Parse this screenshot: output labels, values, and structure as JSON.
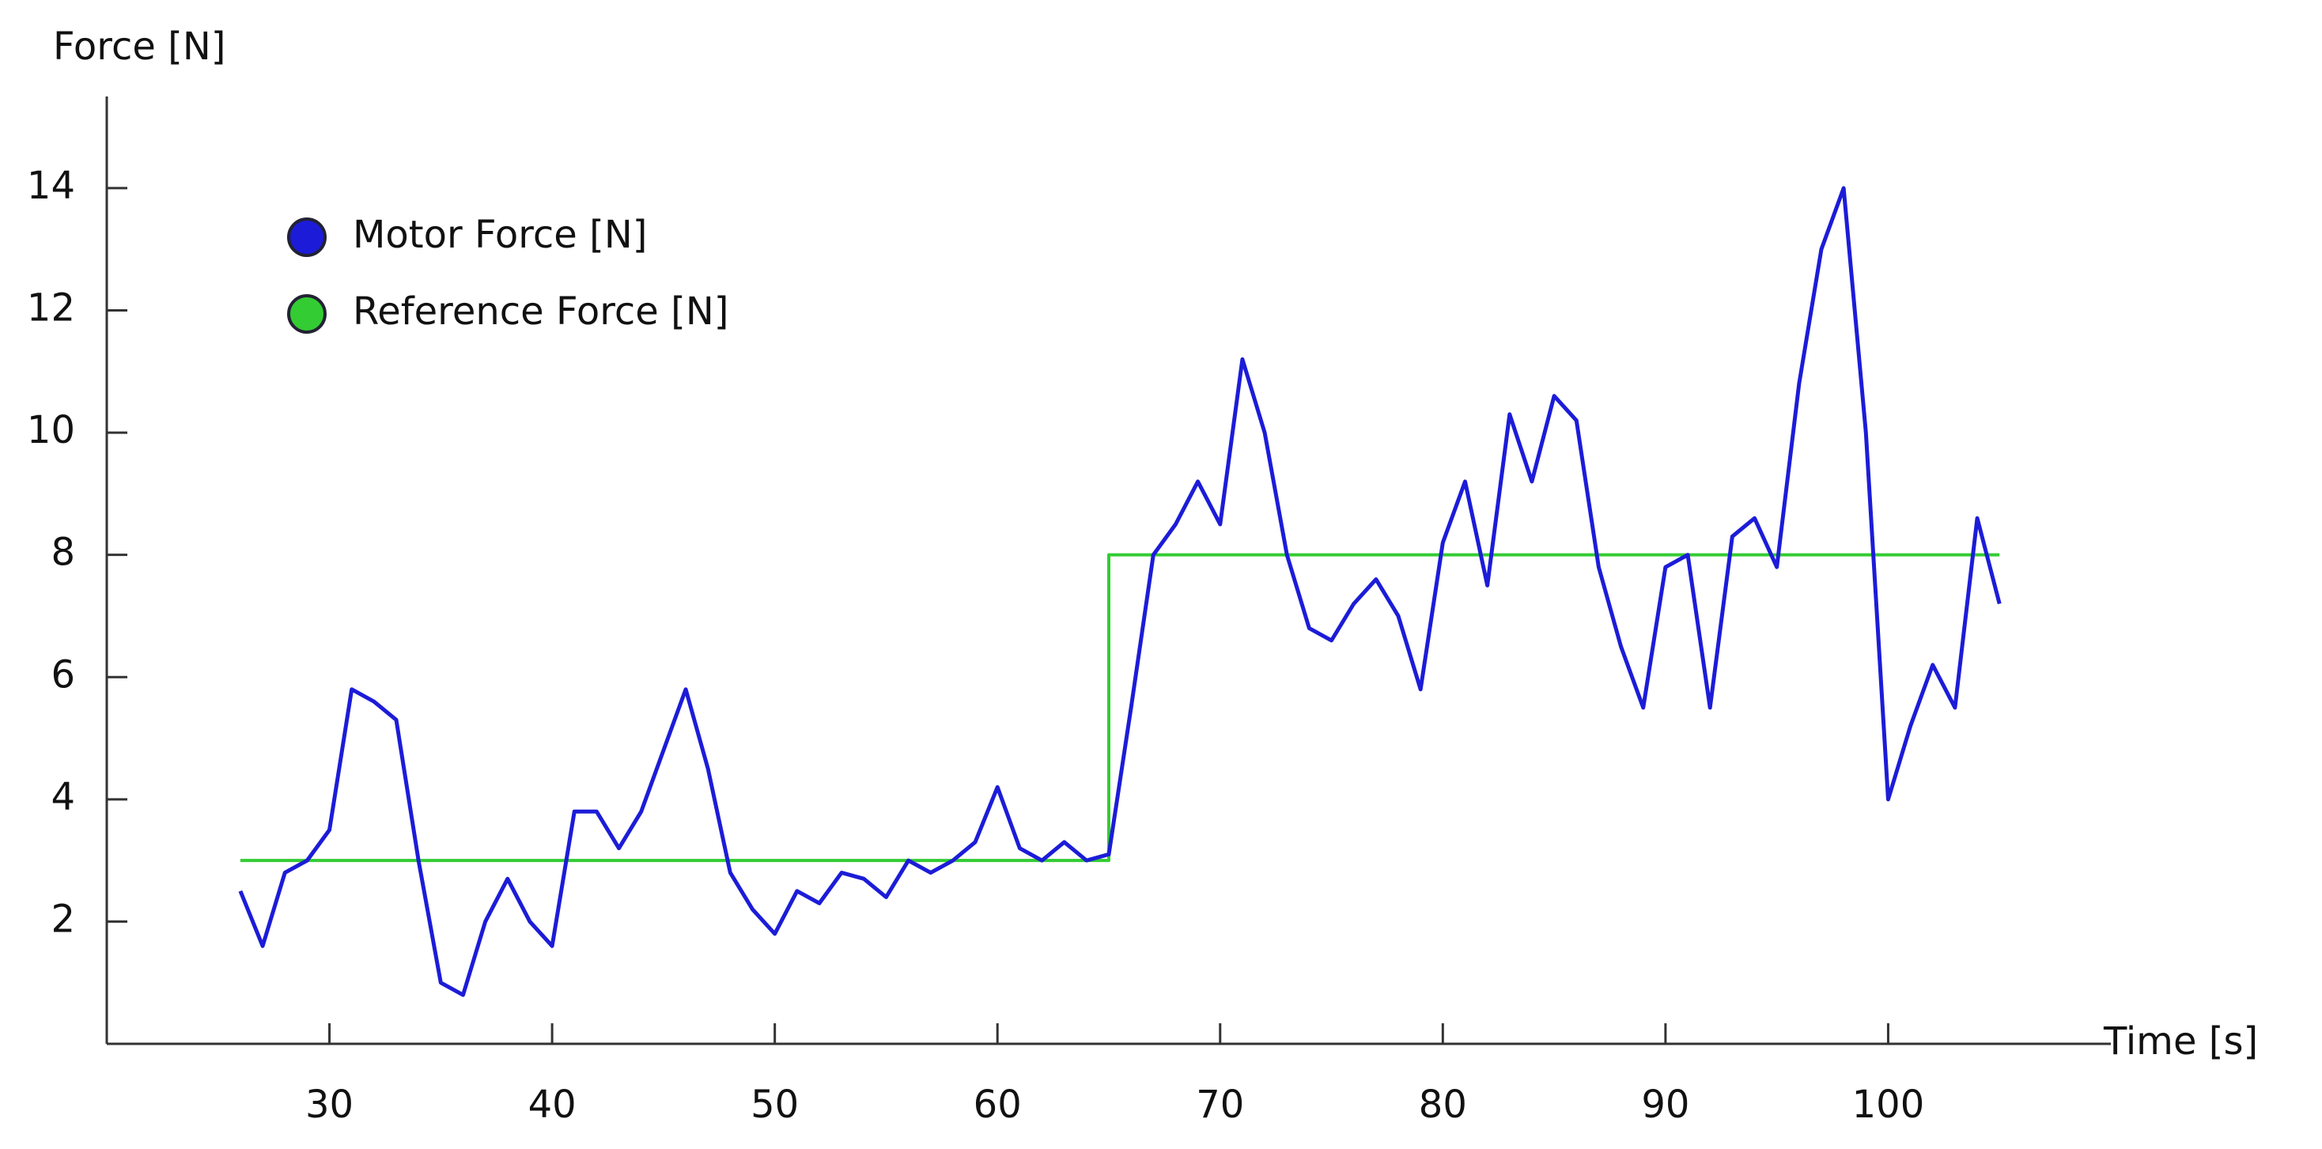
{
  "chart_data": {
    "type": "line",
    "y_label": "Force [N]",
    "x_label": "Time [s]",
    "xlim": [
      20,
      110
    ],
    "ylim": [
      0,
      15.5
    ],
    "xticks": [
      30,
      40,
      50,
      60,
      70,
      80,
      90,
      100
    ],
    "yticks": [
      2,
      4,
      6,
      8,
      10,
      12,
      14
    ],
    "grid": false,
    "legend": "upper left",
    "series": [
      {
        "name": "Motor Force [N]",
        "color": "#1c1cd8",
        "x": [
          26,
          27,
          28,
          29,
          30,
          31,
          32,
          33,
          34,
          35,
          36,
          37,
          38,
          39,
          40,
          41,
          42,
          43,
          44,
          45,
          46,
          47,
          48,
          49,
          50,
          51,
          52,
          53,
          54,
          55,
          56,
          57,
          58,
          59,
          60,
          61,
          62,
          63,
          64,
          65,
          66,
          67,
          68,
          69,
          70,
          71,
          72,
          73,
          74,
          75,
          76,
          77,
          78,
          79,
          80,
          81,
          82,
          83,
          84,
          85,
          86,
          87,
          88,
          89,
          90,
          91,
          92,
          93,
          94,
          95,
          96,
          97,
          98,
          99,
          100,
          101,
          102,
          103,
          104,
          105
        ],
        "values": [
          2.5,
          1.6,
          2.8,
          3.0,
          3.5,
          5.8,
          5.6,
          5.3,
          3.0,
          1.0,
          0.8,
          2.0,
          2.7,
          2.0,
          1.6,
          3.8,
          3.8,
          3.2,
          3.8,
          4.8,
          5.8,
          4.5,
          2.8,
          2.2,
          1.8,
          2.5,
          2.3,
          2.8,
          2.7,
          2.4,
          3.0,
          2.8,
          3.0,
          3.3,
          4.2,
          3.2,
          3.0,
          3.3,
          3.0,
          3.1,
          5.5,
          8.0,
          8.5,
          9.2,
          8.5,
          11.2,
          10.0,
          8.0,
          6.8,
          6.6,
          7.2,
          7.6,
          7.0,
          5.8,
          8.2,
          9.2,
          7.5,
          10.3,
          9.2,
          10.6,
          10.2,
          7.8,
          6.5,
          5.5,
          7.8,
          8.0,
          5.5,
          8.3,
          8.6,
          7.8,
          10.8,
          13.0,
          14.0,
          10.0,
          4.0,
          5.2,
          6.2,
          5.5,
          8.6,
          7.2
        ]
      },
      {
        "name": "Reference Force [N]",
        "color": "#33cc33",
        "x": [
          26,
          65,
          65,
          105
        ],
        "values": [
          3,
          3,
          8,
          8
        ]
      }
    ]
  }
}
